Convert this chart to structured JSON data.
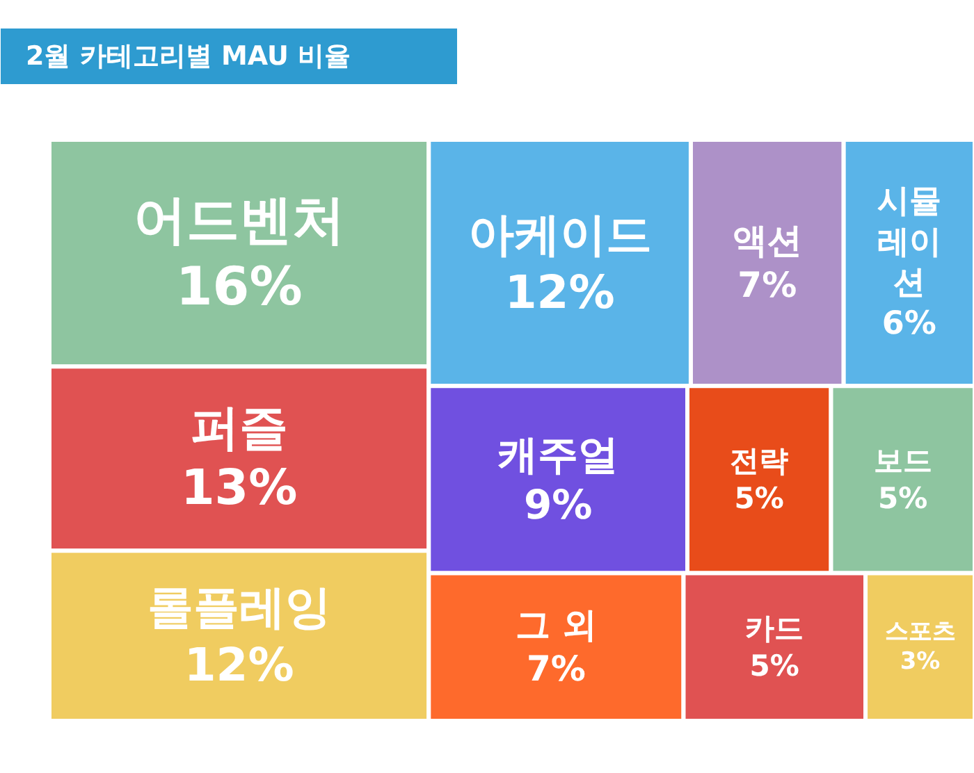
{
  "chart_data": {
    "type": "other",
    "title": "2월 카테고리별 MAU 비율",
    "categories": [
      "어드벤처",
      "퍼즐",
      "롤플레잉",
      "아케이드",
      "액션",
      "시뮬레이션",
      "캐주얼",
      "전략",
      "보드",
      "그 외",
      "카드",
      "스포츠"
    ],
    "values": [
      16,
      13,
      12,
      12,
      7,
      6,
      9,
      5,
      5,
      7,
      5,
      3
    ],
    "value_labels": [
      "16%",
      "13%",
      "12%",
      "12%",
      "7%",
      "6%",
      "9%",
      "5%",
      "5%",
      "7%",
      "5%",
      "3%"
    ],
    "colors": [
      "#8ec5a0",
      "#e05252",
      "#f0cc60",
      "#5ab4e8",
      "#ad91c8",
      "#5ab4e8",
      "#7050e0",
      "#e84c1a",
      "#8ec5a0",
      "#fe6a2c",
      "#e05252",
      "#f0cc60"
    ]
  }
}
